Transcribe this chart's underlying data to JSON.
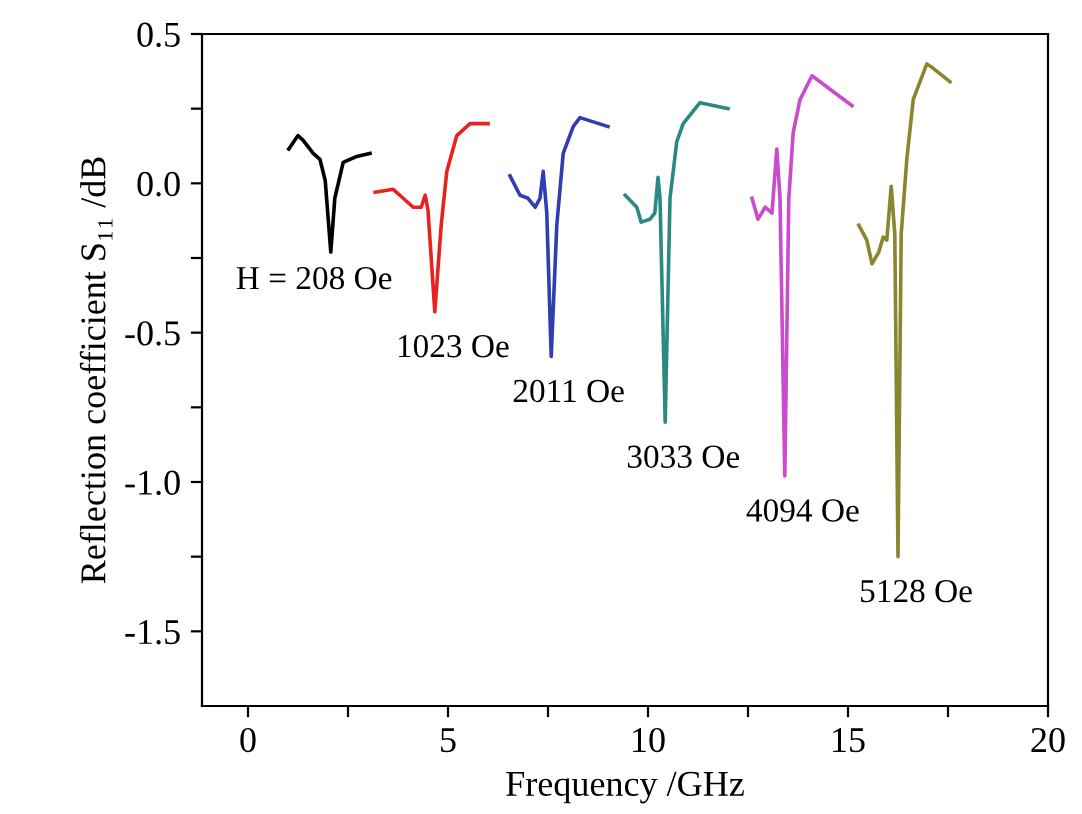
{
  "chart_data": {
    "type": "line",
    "xlabel": "Frequency /GHz",
    "ylabel": "Reflection coefficient S₁₁ /dB",
    "xlim": [
      -1.15,
      20
    ],
    "ylim": [
      -1.75,
      0.5
    ],
    "xticks": [
      0,
      {
        "value": 2.5,
        "label": null
      },
      5,
      {
        "value": 7.5,
        "label": null
      },
      10,
      {
        "value": 12.5,
        "label": null
      },
      15,
      {
        "value": 17.5,
        "label": null
      },
      20
    ],
    "yticks": [
      {
        "value": -1.5,
        "label": "-1.5"
      },
      {
        "value": -1.25,
        "label": null
      },
      {
        "value": -1.0,
        "label": "-1.0"
      },
      {
        "value": -0.75,
        "label": null
      },
      {
        "value": -0.5,
        "label": "-0.5"
      },
      {
        "value": -0.25,
        "label": null
      },
      {
        "value": 0.0,
        "label": "0.0"
      },
      {
        "value": 0.25,
        "label": null
      },
      {
        "value": 0.5,
        "label": "0.5"
      }
    ],
    "grid": false,
    "marker": "none",
    "line_style": "solid",
    "series": [
      {
        "name": "H = 208 Oe",
        "color": "#000000",
        "x": [
          1.02,
          1.25,
          1.38,
          1.63,
          1.8,
          1.93,
          2.07,
          2.17,
          2.38,
          2.72,
          3.05
        ],
        "values": [
          0.115,
          0.16,
          0.144,
          0.1,
          0.08,
          0.01,
          -0.23,
          -0.05,
          0.07,
          0.09,
          0.1
        ]
      },
      {
        "name": "1023 Oe",
        "color": "#e8231f",
        "x": [
          3.18,
          3.63,
          3.88,
          4.13,
          4.33,
          4.43,
          4.5,
          4.67,
          4.83,
          4.97,
          5.22,
          5.55,
          6.0
        ],
        "values": [
          -0.03,
          -0.02,
          -0.05,
          -0.08,
          -0.08,
          -0.04,
          -0.09,
          -0.43,
          -0.14,
          0.04,
          0.16,
          0.2,
          0.2
        ]
      },
      {
        "name": "2011 Oe",
        "color": "#2f3fb0",
        "x": [
          6.55,
          6.8,
          7.0,
          7.18,
          7.3,
          7.38,
          7.47,
          7.58,
          7.72,
          7.88,
          8.13,
          8.3,
          9.0
        ],
        "values": [
          0.025,
          -0.04,
          -0.05,
          -0.08,
          -0.05,
          0.04,
          -0.1,
          -0.58,
          -0.14,
          0.1,
          0.19,
          0.22,
          0.19
        ]
      },
      {
        "name": "3033 Oe",
        "color": "#2a8a82",
        "x": [
          9.43,
          9.72,
          9.83,
          10.05,
          10.17,
          10.25,
          10.3,
          10.43,
          10.55,
          10.72,
          10.88,
          11.3,
          12.0
        ],
        "values": [
          -0.04,
          -0.08,
          -0.13,
          -0.12,
          -0.1,
          0.02,
          -0.05,
          -0.8,
          -0.05,
          0.14,
          0.2,
          0.27,
          0.25
        ]
      },
      {
        "name": "4094 Oe",
        "color": "#c84ccc",
        "x": [
          12.6,
          12.75,
          12.93,
          13.1,
          13.22,
          13.3,
          13.42,
          13.52,
          13.63,
          13.8,
          14.1,
          15.1
        ],
        "values": [
          -0.05,
          -0.12,
          -0.08,
          -0.1,
          0.115,
          -0.05,
          -0.98,
          -0.05,
          0.17,
          0.28,
          0.36,
          0.26
        ]
      },
      {
        "name": "5128 Oe",
        "color": "#8a8630",
        "x": [
          15.27,
          15.47,
          15.6,
          15.77,
          15.88,
          15.97,
          16.08,
          16.17,
          16.25,
          16.33,
          16.47,
          16.63,
          16.97,
          17.13,
          17.55
        ],
        "values": [
          -0.14,
          -0.19,
          -0.27,
          -0.23,
          -0.18,
          -0.19,
          -0.01,
          -0.17,
          -1.25,
          -0.17,
          0.08,
          0.28,
          0.4,
          0.385,
          0.34
        ]
      }
    ]
  }
}
